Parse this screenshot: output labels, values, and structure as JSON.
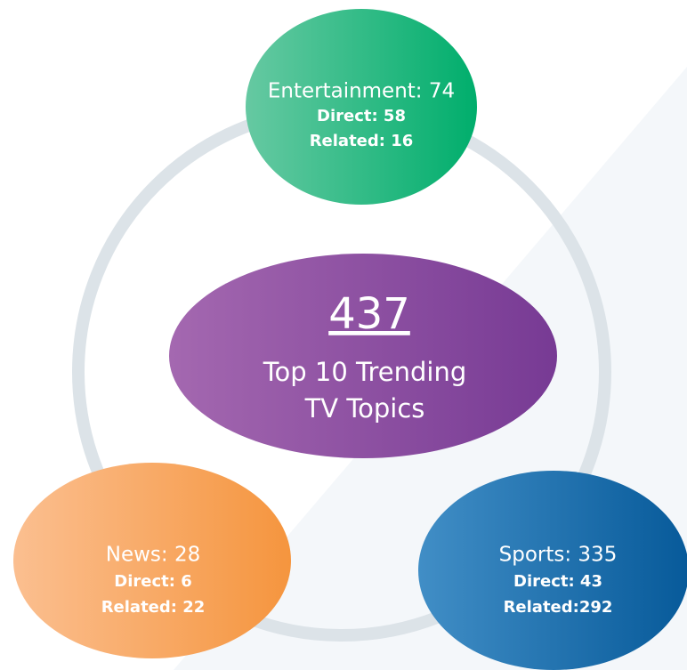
{
  "center": {
    "total": "437",
    "label_lines": [
      "Top 10 Trending",
      "TV Topics"
    ]
  },
  "nodes": [
    {
      "title": "Entertainment: 74",
      "direct": "Direct: 58",
      "related": "Related: 16"
    },
    {
      "title": "News: 28",
      "direct": "Direct: 6",
      "related": "Related: 22"
    },
    {
      "title": "Sports: 335",
      "direct": "Direct: 43",
      "related": "Related:292"
    }
  ]
}
